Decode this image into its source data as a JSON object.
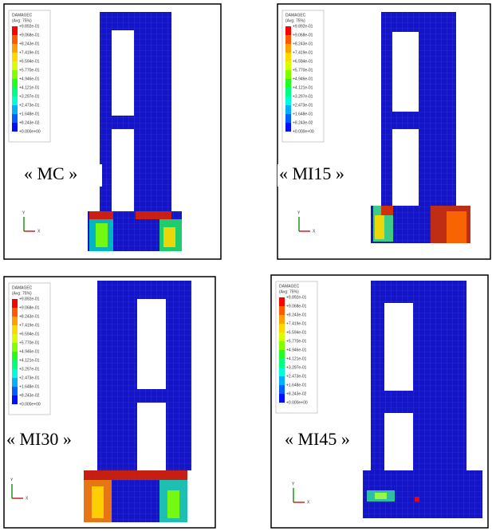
{
  "panels": [
    {
      "label": "« MC »",
      "legend_title": "DAMAGEC",
      "legend_subtitle": "(Avg: 75%)"
    },
    {
      "label": "« MI15 »",
      "legend_title": "DAMAGEC",
      "legend_subtitle": "(Avg: 75%)"
    },
    {
      "label": "« MI30 »",
      "legend_title": "DAMAGEC",
      "legend_subtitle": "(Avg: 75%)"
    },
    {
      "label": "« MI45 »",
      "legend_title": "DAMAGEC",
      "legend_subtitle": "(Avg: 75%)"
    }
  ],
  "legend_values": [
    "+9.892e-01",
    "+9.068e-01",
    "+8.243e-01",
    "+7.419e-01",
    "+6.594e-01",
    "+5.770e-01",
    "+4.946e-01",
    "+4.121e-01",
    "+3.297e-01",
    "+2.473e-01",
    "+1.648e-01",
    "+8.243e-02",
    "+0.000e+00"
  ],
  "axis_y": "Y",
  "axis_x": "X"
}
